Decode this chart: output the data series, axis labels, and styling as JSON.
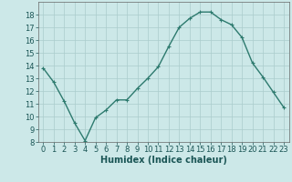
{
  "x": [
    0,
    1,
    2,
    3,
    4,
    5,
    6,
    7,
    8,
    9,
    10,
    11,
    12,
    13,
    14,
    15,
    16,
    17,
    18,
    19,
    20,
    21,
    22,
    23
  ],
  "y": [
    13.8,
    12.7,
    11.2,
    9.5,
    8.1,
    9.9,
    10.5,
    11.3,
    11.3,
    12.2,
    13.0,
    13.9,
    15.5,
    17.0,
    17.7,
    18.2,
    18.2,
    17.6,
    17.2,
    16.2,
    14.2,
    13.1,
    11.9,
    10.7
  ],
  "line_color": "#2d7a6e",
  "marker": "+",
  "marker_size": 3,
  "marker_lw": 0.8,
  "bg_color": "#cce8e8",
  "grid_color": "#aacccc",
  "xlabel": "Humidex (Indice chaleur)",
  "ylim": [
    8,
    19
  ],
  "xlim": [
    -0.5,
    23.5
  ],
  "yticks": [
    8,
    9,
    10,
    11,
    12,
    13,
    14,
    15,
    16,
    17,
    18
  ],
  "xticks": [
    0,
    1,
    2,
    3,
    4,
    5,
    6,
    7,
    8,
    9,
    10,
    11,
    12,
    13,
    14,
    15,
    16,
    17,
    18,
    19,
    20,
    21,
    22,
    23
  ],
  "tick_fontsize": 6,
  "xlabel_fontsize": 7,
  "line_width": 1.0
}
